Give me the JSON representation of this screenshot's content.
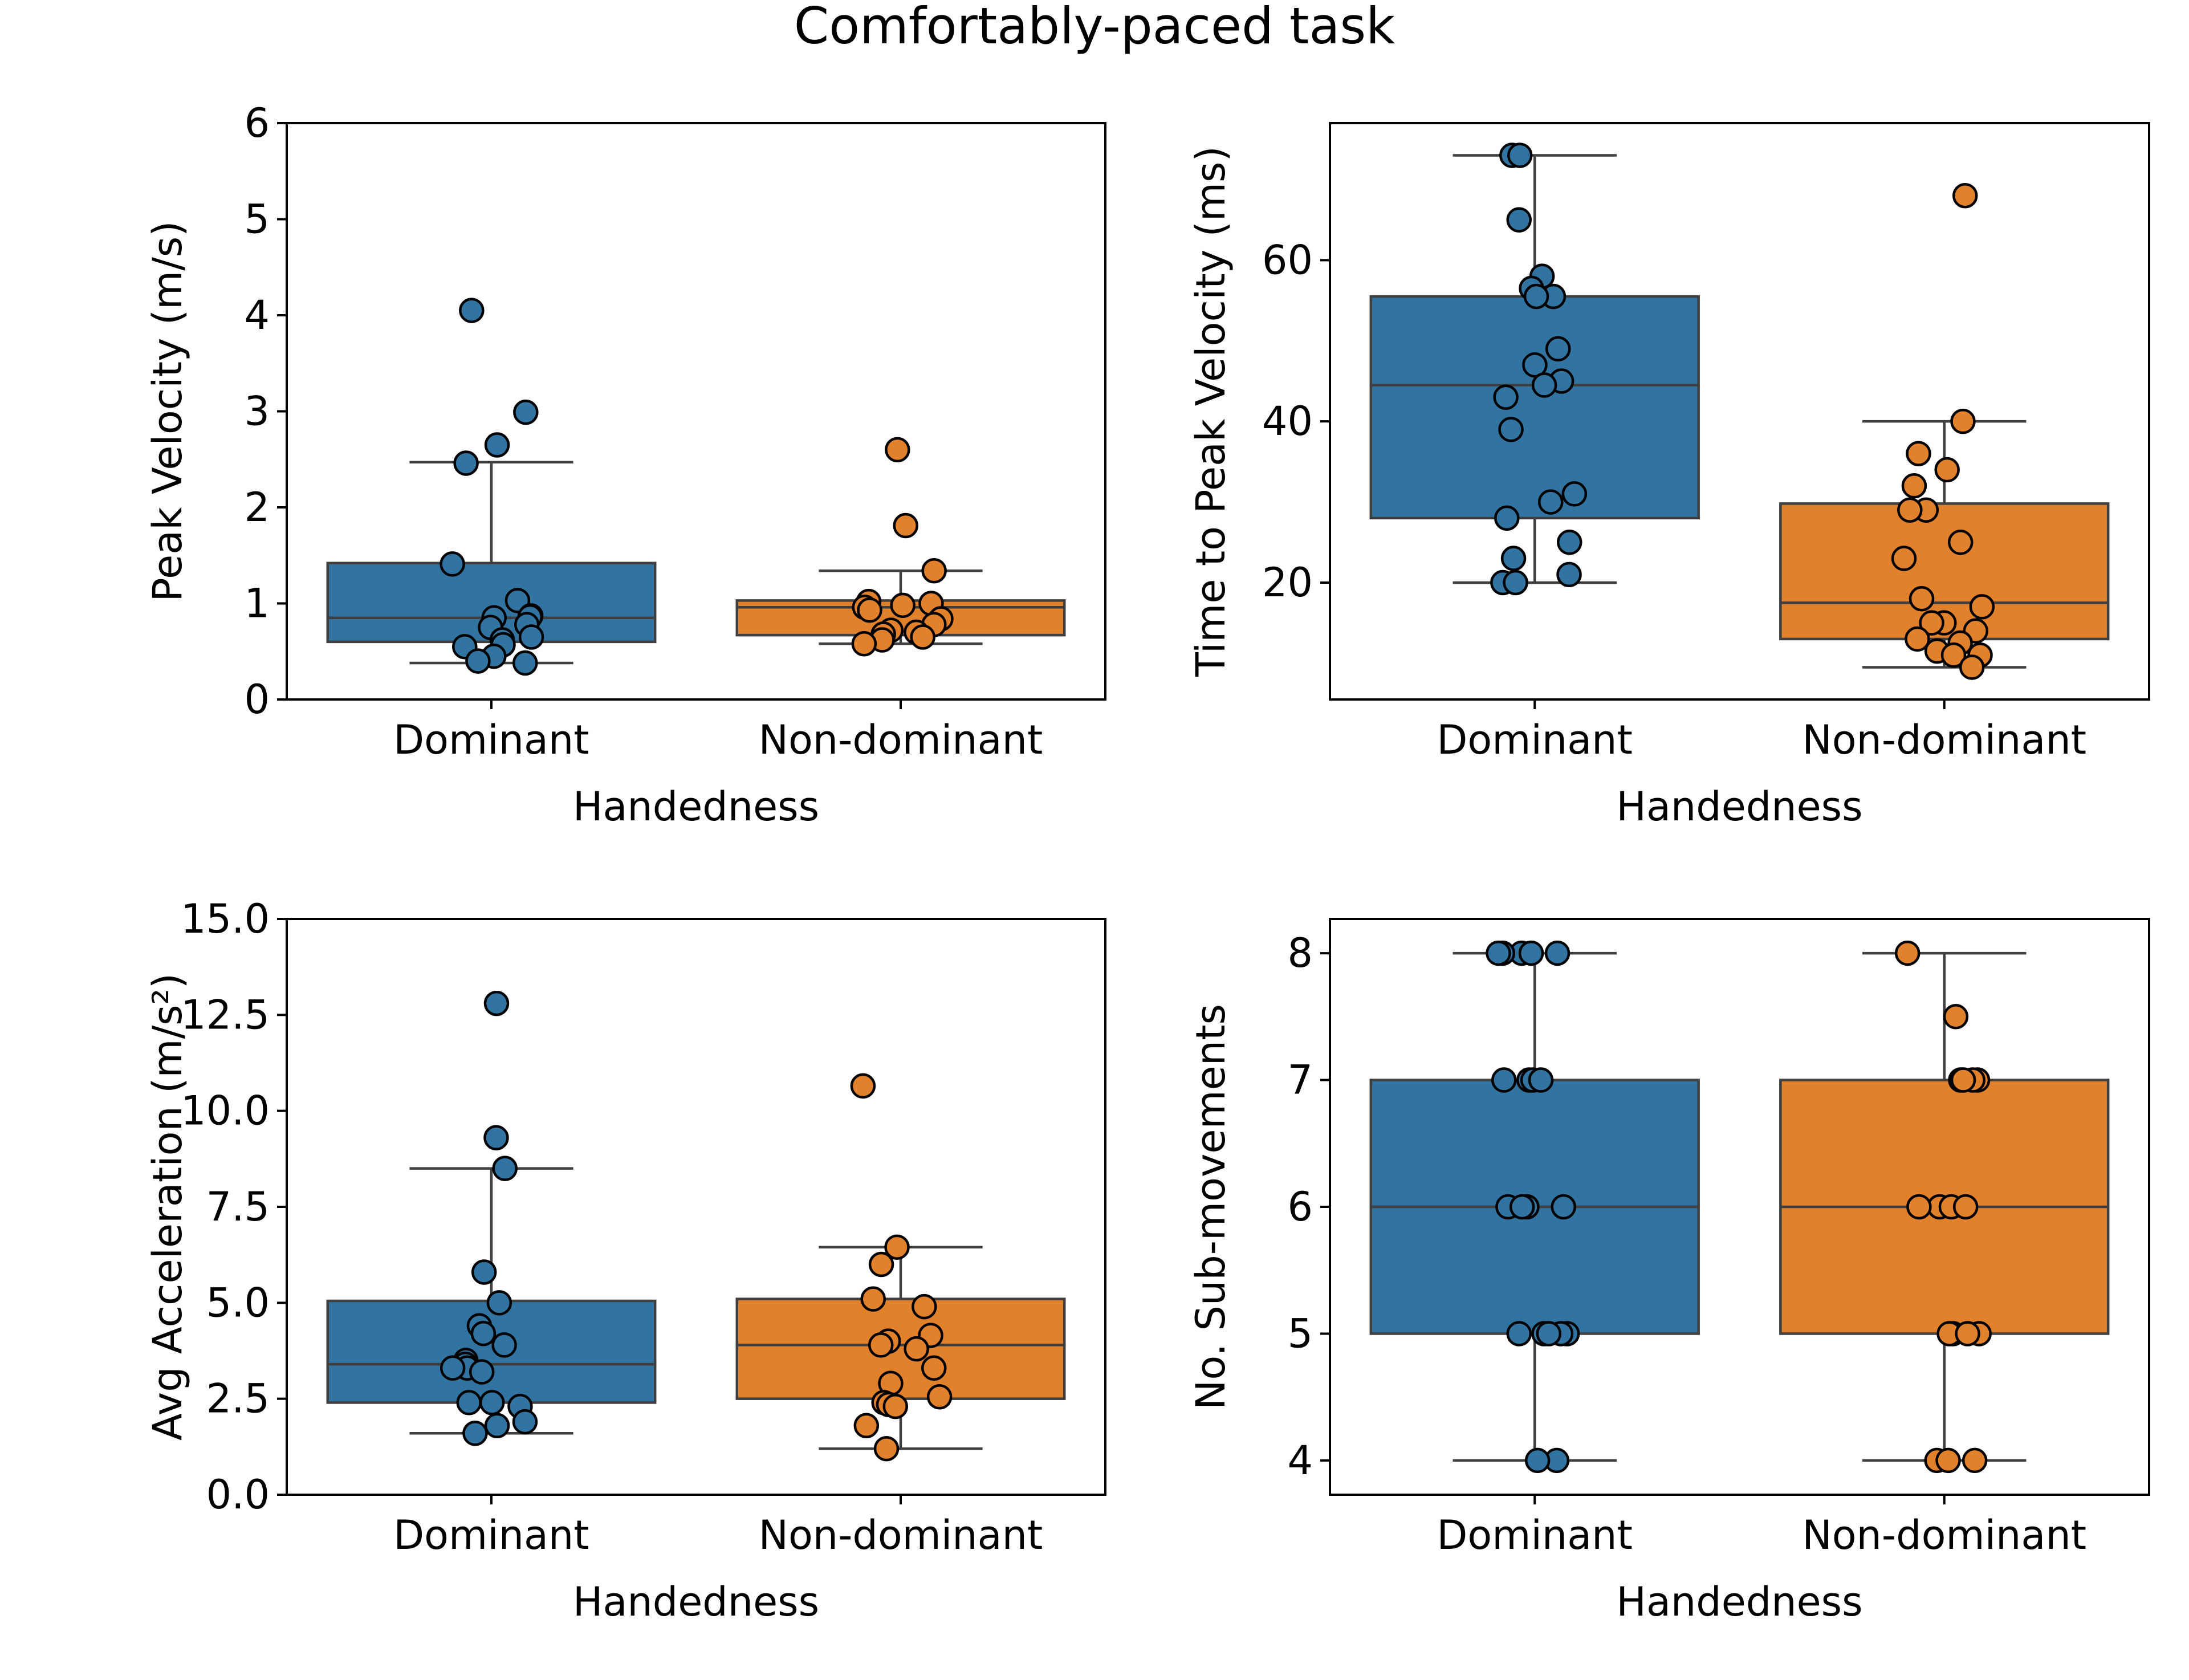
{
  "figure": {
    "title": "Comfortably-paced task",
    "colors": {
      "dominant": "#3274a1",
      "non_dominant": "#e1812c",
      "box_edge": "#3f3f3f",
      "axes": "#000000"
    }
  },
  "chart_data": [
    {
      "type": "box",
      "xlabel": "Handedness",
      "ylabel": "Peak Velocity (m/s)",
      "ylim": [
        0,
        6
      ],
      "yticks": [
        0,
        1,
        2,
        3,
        4,
        5,
        6
      ],
      "categories": [
        "Dominant",
        "Non-dominant"
      ],
      "boxes": [
        {
          "category": "Dominant",
          "whisker_low": 0.38,
          "q1": 0.6,
          "median": 0.85,
          "q3": 1.42,
          "whisker_high": 2.47,
          "points": [
            4.05,
            2.99,
            2.65,
            2.46,
            1.41,
            1.03,
            0.87,
            0.86,
            0.85,
            0.78,
            0.75,
            0.65,
            0.62,
            0.57,
            0.55,
            0.45,
            0.4,
            0.38
          ]
        },
        {
          "category": "Non-dominant",
          "whisker_low": 0.58,
          "q1": 0.67,
          "median": 0.96,
          "q3": 1.03,
          "whisker_high": 1.34,
          "points": [
            2.6,
            1.81,
            1.34,
            1.02,
            1.0,
            0.98,
            0.96,
            0.93,
            0.84,
            0.78,
            0.72,
            0.7,
            0.68,
            0.65,
            0.62,
            0.58
          ]
        }
      ]
    },
    {
      "type": "box",
      "xlabel": "Handedness",
      "ylabel": "Time to Peak Velocity (ms)",
      "ylim": [
        5.5,
        77
      ],
      "yticks": [
        20,
        40,
        60
      ],
      "categories": [
        "Dominant",
        "Non-dominant"
      ],
      "boxes": [
        {
          "category": "Dominant",
          "whisker_low": 20,
          "q1": 28,
          "median": 44.5,
          "q3": 55.5,
          "whisker_high": 73,
          "points": [
            73,
            73,
            65,
            58,
            56.5,
            55.5,
            55.5,
            49,
            47,
            45,
            44.5,
            43,
            39,
            31,
            30,
            28,
            25,
            23,
            21,
            20,
            20
          ]
        },
        {
          "category": "Non-dominant",
          "whisker_low": 9.5,
          "q1": 13,
          "median": 17.5,
          "q3": 29.8,
          "whisker_high": 40,
          "points": [
            68,
            40,
            36,
            34,
            32,
            29,
            29,
            25,
            23,
            18,
            17,
            15,
            15,
            14,
            13,
            12.5,
            11.5,
            11,
            11,
            9.5
          ]
        }
      ]
    },
    {
      "type": "box",
      "xlabel": "Handedness",
      "ylabel": "Avg Acceleration (m/s²)",
      "ylim": [
        0,
        15
      ],
      "yticks": [
        0.0,
        2.5,
        5.0,
        7.5,
        10.0,
        12.5,
        15.0
      ],
      "ytick_labels": [
        "0.0",
        "2.5",
        "5.0",
        "7.5",
        "10.0",
        "12.5",
        "15.0"
      ],
      "categories": [
        "Dominant",
        "Non-dominant"
      ],
      "boxes": [
        {
          "category": "Dominant",
          "whisker_low": 1.6,
          "q1": 2.4,
          "median": 3.4,
          "q3": 5.05,
          "whisker_high": 8.5,
          "points": [
            12.8,
            9.3,
            8.5,
            5.8,
            5.0,
            4.4,
            4.2,
            3.9,
            3.5,
            3.4,
            3.3,
            3.3,
            3.2,
            2.4,
            2.4,
            2.3,
            1.9,
            1.8,
            1.6
          ]
        },
        {
          "category": "Non-dominant",
          "whisker_low": 1.2,
          "q1": 2.5,
          "median": 3.9,
          "q3": 5.1,
          "whisker_high": 6.45,
          "points": [
            10.65,
            6.45,
            6.0,
            5.1,
            4.9,
            4.15,
            4.0,
            3.9,
            3.8,
            3.3,
            2.9,
            2.55,
            2.4,
            2.35,
            2.3,
            1.8,
            1.2
          ]
        }
      ]
    },
    {
      "type": "box",
      "xlabel": "Handedness",
      "ylabel": "No. Sub-movements",
      "ylim": [
        3.73,
        8.27
      ],
      "yticks": [
        4,
        5,
        6,
        7,
        8
      ],
      "categories": [
        "Dominant",
        "Non-dominant"
      ],
      "boxes": [
        {
          "category": "Dominant",
          "whisker_low": 4,
          "q1": 5,
          "median": 6,
          "q3": 7,
          "whisker_high": 8,
          "points": [
            8,
            8,
            8,
            8,
            8,
            7,
            7,
            7,
            7,
            6,
            6,
            6,
            6,
            5,
            5,
            5,
            5,
            5,
            4,
            4
          ]
        },
        {
          "category": "Non-dominant",
          "whisker_low": 4,
          "q1": 5,
          "median": 6,
          "q3": 7,
          "whisker_high": 8,
          "points": [
            8,
            7.5,
            7,
            7,
            7,
            7,
            7,
            6,
            6,
            6,
            6,
            5,
            5,
            5,
            5,
            4,
            4,
            4
          ]
        }
      ]
    }
  ]
}
